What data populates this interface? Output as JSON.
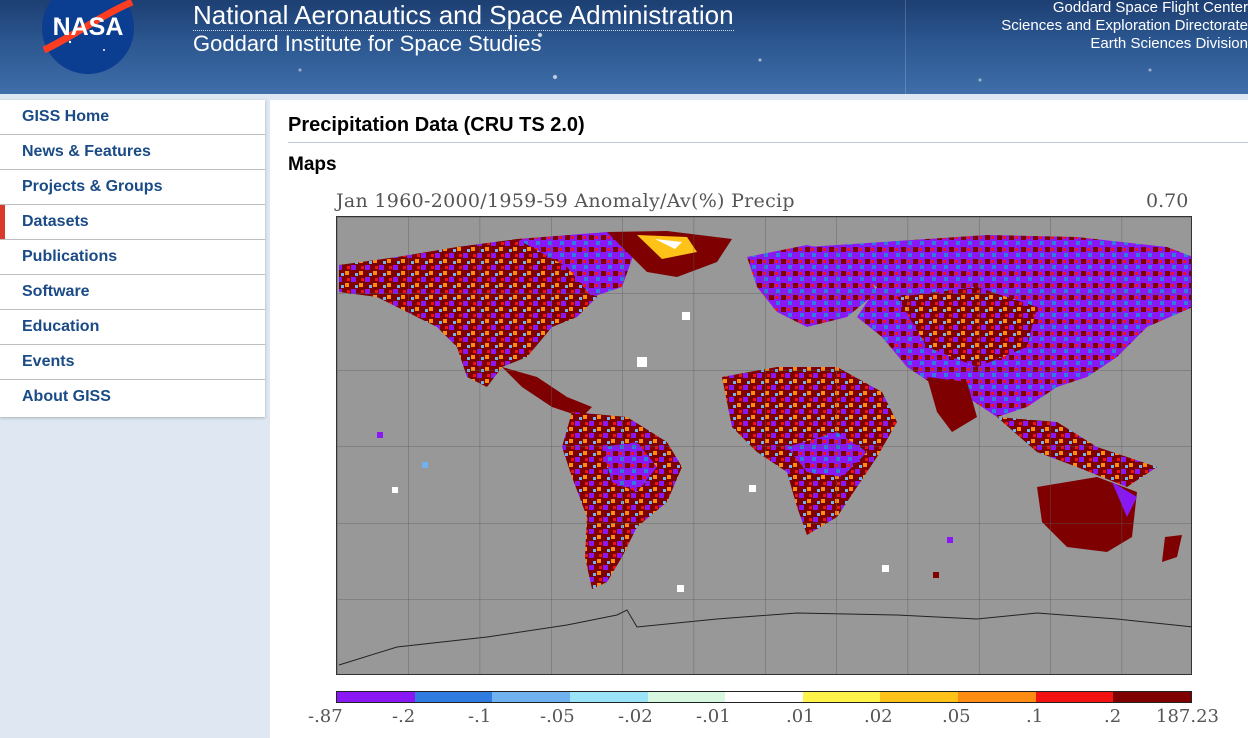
{
  "header": {
    "agency": "National Aeronautics and Space Administration",
    "institute": "Goddard Institute for Space Studies",
    "logo_text": "NASA",
    "right_lines": [
      "Goddard Space Flight Center",
      "Sciences and Exploration Directorate",
      "Earth Sciences Division"
    ]
  },
  "sidebar": {
    "items": [
      {
        "label": "GISS Home"
      },
      {
        "label": "News & Features"
      },
      {
        "label": "Projects & Groups"
      },
      {
        "label": "Datasets",
        "active": true
      },
      {
        "label": "Publications"
      },
      {
        "label": "Software"
      },
      {
        "label": "Education"
      },
      {
        "label": "Events"
      },
      {
        "label": "About GISS"
      }
    ]
  },
  "main": {
    "title": "Precipitation Data (CRU TS 2.0)",
    "section": "Maps",
    "map": {
      "caption": "Jan 1960-2000/1959-59 Anomaly/Av(%) Precip",
      "value": "0.70",
      "legend_ticks": [
        "-.87",
        "-.2",
        "-.1",
        "-.05",
        "-.02",
        "-.01",
        ".01",
        ".02",
        ".05",
        ".1",
        ".2",
        "187.23"
      ],
      "legend_colors": [
        "#8a18f5",
        "#2f7be0",
        "#6fb2ef",
        "#9be3f6",
        "#d8f7e0",
        "#ffffff",
        "#fff34a",
        "#ffc218",
        "#ff8c12",
        "#f21212",
        "#7f0000"
      ],
      "ocean_color": "#989898"
    }
  }
}
